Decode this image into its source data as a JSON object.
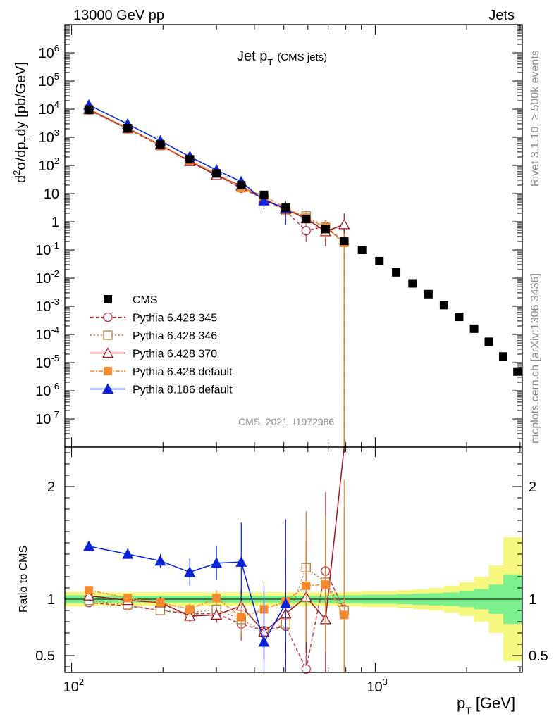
{
  "header": {
    "left": "13000 GeV pp",
    "right": "Jets"
  },
  "side_text": {
    "rivet": "Rivet 3.1.10, ≥ 500k events",
    "mcplots": "mcplots.cern.ch [arXiv:1306.3436]"
  },
  "chart_data": {
    "type": "scatter",
    "title": "Jet p",
    "title_sub": "T",
    "title_note": "(CMS jets)",
    "analysis_id": "CMS_2021_I1972986",
    "xlabel": "p",
    "xlabel_sub": "T",
    "xlabel_unit": "[GeV]",
    "xscale": "log",
    "xlim": [
      95,
      3050
    ],
    "main": {
      "ylabel": "d²σ/dp_T dy [pb/GeV]",
      "yscale": "log",
      "ylim": [
        1e-08,
        10000000.0
      ],
      "yticks": [
        {
          "v": 1e-07,
          "m": "10",
          "e": "-7"
        },
        {
          "v": 1e-06,
          "m": "10",
          "e": "-6"
        },
        {
          "v": 1e-05,
          "m": "10",
          "e": "-5"
        },
        {
          "v": 0.0001,
          "m": "10",
          "e": "-4"
        },
        {
          "v": 0.001,
          "m": "10",
          "e": "-3"
        },
        {
          "v": 0.01,
          "m": "10",
          "e": "-2"
        },
        {
          "v": 0.1,
          "m": "10",
          "e": "-1"
        },
        {
          "v": 1,
          "m": "1",
          "e": ""
        },
        {
          "v": 10,
          "m": "10",
          "e": ""
        },
        {
          "v": 100,
          "m": "10",
          "e": "2"
        },
        {
          "v": 1000,
          "m": "10",
          "e": "3"
        },
        {
          "v": 10000,
          "m": "10",
          "e": "4"
        },
        {
          "v": 100000,
          "m": "10",
          "e": "5"
        },
        {
          "v": 1000000,
          "m": "10",
          "e": "6"
        }
      ]
    },
    "ratio": {
      "ylabel": "Ratio to CMS",
      "ylim": [
        0.35,
        2.35
      ],
      "yticks": [
        {
          "v": 0.5,
          "label": "0.5"
        },
        {
          "v": 1,
          "label": "1"
        },
        {
          "v": 2,
          "label": "2"
        }
      ]
    },
    "xticks": [
      {
        "v": 100,
        "m": "10",
        "e": "2"
      },
      {
        "v": 1000,
        "m": "10",
        "e": "3"
      }
    ],
    "legend_position": "bottom-left",
    "colors": {
      "cms": "#000000",
      "p345": "#c0394a",
      "p346": "#b5813c",
      "p370": "#a0141e",
      "pdef": "#f58a2f",
      "p8": "#0a22d8",
      "band_inner": "#7cf08c",
      "band_outer": "#f6f77e"
    },
    "cms": {
      "name": "CMS",
      "x": [
        114,
        153,
        196,
        245,
        300,
        362,
        430,
        507,
        592,
        686,
        790,
        905,
        1032,
        1172,
        1327,
        1497,
        1684,
        1890,
        2116,
        2366,
        2640,
        2941
      ],
      "y": [
        9500,
        2100,
        560,
        165,
        52,
        20,
        9,
        3.2,
        1.25,
        0.55,
        0.21,
        0.1,
        0.04,
        0.016,
        0.0065,
        0.0027,
        0.0011,
        0.00042,
        0.00016,
        5.5e-05,
        1.65e-05,
        4.8e-06
      ],
      "band_x": [
        95,
        114,
        153,
        196,
        245,
        300,
        362,
        430,
        507,
        592,
        686,
        790,
        905,
        1032,
        1172,
        1327,
        1497,
        1684,
        1890,
        2116,
        2366,
        2640,
        2941,
        3050
      ],
      "band_inner": [
        0.035,
        0.035,
        0.03,
        0.03,
        0.03,
        0.03,
        0.03,
        0.03,
        0.03,
        0.03,
        0.03,
        0.035,
        0.035,
        0.04,
        0.04,
        0.045,
        0.05,
        0.055,
        0.06,
        0.07,
        0.09,
        0.13,
        0.22,
        0.22
      ],
      "band_outer": [
        0.065,
        0.065,
        0.06,
        0.06,
        0.06,
        0.06,
        0.06,
        0.06,
        0.06,
        0.06,
        0.06,
        0.06,
        0.065,
        0.07,
        0.07,
        0.08,
        0.09,
        0.1,
        0.12,
        0.15,
        0.2,
        0.3,
        0.55,
        0.55
      ]
    },
    "series": [
      {
        "key": "p345",
        "name": "Pythia 6.428 345",
        "dash": "5,3",
        "marker": "circle-open",
        "x": [
          114,
          153,
          196,
          245,
          300,
          362,
          430,
          507,
          592,
          686,
          790
        ],
        "y": [
          9200,
          1970,
          505,
          143,
          45.3,
          15.6,
          6.5,
          2.43,
          0.48,
          0.69,
          0.19
        ],
        "ratio": [
          0.97,
          0.94,
          0.9,
          0.87,
          0.87,
          0.78,
          0.72,
          0.76,
          0.38,
          1.25,
          0.91
        ],
        "err": [
          0.02,
          0.02,
          0.02,
          0.05,
          0.07,
          0.15,
          0.25,
          0.35,
          0.6,
          0.7,
          0.9
        ]
      },
      {
        "key": "p346",
        "name": "Pythia 6.428 346",
        "dash": "2,3",
        "marker": "square-open",
        "x": [
          114,
          153,
          196,
          245,
          300,
          362,
          430,
          507,
          592,
          686,
          790
        ],
        "y": [
          9400,
          2000,
          505,
          145,
          47.3,
          16.4,
          6.4,
          2.5,
          1.6,
          0.63,
          0.19
        ],
        "ratio": [
          0.99,
          0.95,
          0.9,
          0.88,
          0.91,
          0.82,
          0.71,
          0.78,
          1.28,
          1.15,
          0.9
        ],
        "err": [
          0.02,
          0.02,
          0.02,
          0.05,
          0.07,
          0.15,
          0.25,
          0.35,
          0.5,
          0.6,
          0.5
        ]
      },
      {
        "key": "p370",
        "name": "Pythia 6.428 370",
        "dash": "",
        "marker": "triangle-open",
        "x": [
          114,
          153,
          196,
          245,
          300,
          362,
          430,
          507,
          592,
          686,
          790
        ],
        "y": [
          9800,
          2080,
          545,
          140,
          44.7,
          18.8,
          6.4,
          2.8,
          1.3,
          0.45,
          0.8
        ],
        "ratio": [
          1.03,
          0.99,
          0.97,
          0.85,
          0.86,
          0.94,
          0.71,
          0.87,
          1.02,
          0.82,
          3.8
        ],
        "err": [
          0.02,
          0.02,
          0.02,
          0.05,
          0.07,
          0.15,
          0.25,
          0.35,
          0.5,
          0.7,
          1.5
        ]
      },
      {
        "key": "pdef",
        "name": "Pythia 6.428 default",
        "dash": "6,2,2,2",
        "marker": "square-filled",
        "x": [
          114,
          153,
          196,
          245,
          300,
          362,
          430,
          507,
          592,
          686,
          790
        ],
        "y": [
          10300,
          2120,
          540,
          150,
          52.5,
          16.8,
          8.2,
          3.15,
          1.4,
          0.62,
          0.18
        ],
        "ratio": [
          1.08,
          1.01,
          0.97,
          0.91,
          1.01,
          0.84,
          0.91,
          0.98,
          1.12,
          1.13,
          0.86
        ],
        "err": [
          0.02,
          0.02,
          0.02,
          0.05,
          0.07,
          0.15,
          0.25,
          0.35,
          0.5,
          0.6,
          1.2
        ]
      },
      {
        "key": "p8",
        "name": "Pythia 8.186 default",
        "dash": "",
        "marker": "triangle-filled",
        "x": [
          114,
          153,
          196,
          245,
          300,
          362,
          430,
          507
        ],
        "y": [
          14000,
          2950,
          750,
          205,
          68.6,
          26.6,
          5.6,
          3.1
        ],
        "ratio": [
          1.47,
          1.4,
          1.34,
          1.24,
          1.32,
          1.33,
          0.62,
          0.96
        ],
        "err": [
          0.02,
          0.04,
          0.06,
          0.12,
          0.15,
          0.35,
          0.5,
          0.75
        ]
      }
    ]
  }
}
